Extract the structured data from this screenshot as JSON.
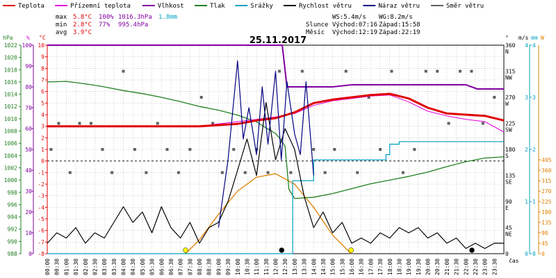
{
  "legend": [
    {
      "label": "Teplota",
      "color": "#e00000"
    },
    {
      "label": "Přízemní teplota",
      "color": "#e000e0"
    },
    {
      "label": "Vlhkost",
      "color": "#8000a0"
    },
    {
      "label": "Tlak",
      "color": "#208020"
    },
    {
      "label": "Srážky",
      "color": "#00a0c0"
    },
    {
      "label": "Rychlost větru",
      "color": "#000000"
    },
    {
      "label": "Náraz větru",
      "color": "#000080"
    },
    {
      "label": "Směr větru",
      "color": "#606060"
    }
  ],
  "stats": {
    "max_label": "max",
    "max_temp": "5.8°C",
    "max_hum": "100%",
    "max_pres": "1016.3hPa",
    "max_rain": "1.8mm",
    "min_label": "min",
    "min_temp": "2.8°C",
    "min_hum": "77%",
    "min_pres": "995.4hPa",
    "avg_label": "avg",
    "avg_temp": "3.9°C"
  },
  "info": {
    "ws": "WS:5.4m/s",
    "wg": "WG:8.2m/s",
    "sun_label": "Slunce",
    "sun_rise": "Východ:07:16",
    "sun_set": "Západ:15:58",
    "moon_label": "Měsíc",
    "moon_rise": "Východ:12:19",
    "moon_set": "Západ:22:19"
  },
  "colors": {
    "temp": "#e00000",
    "ground": "#e000e0",
    "hum": "#8000a0",
    "pres": "#208020",
    "rain": "#00a0c0",
    "wind": "#000000",
    "gust": "#000080",
    "dir": "#606060",
    "sun": "#e08000"
  },
  "chart_data": {
    "type": "line",
    "title": "25.11.2017",
    "xlabel": "čas",
    "x_ticks": [
      "00:00",
      "00:30",
      "01:00",
      "01:30",
      "02:00",
      "02:30",
      "03:00",
      "03:30",
      "04:00",
      "04:30",
      "05:00",
      "05:30",
      "06:00",
      "06:30",
      "07:00",
      "07:30",
      "08:00",
      "08:30",
      "09:00",
      "09:30",
      "10:00",
      "10:30",
      "11:00",
      "11:30",
      "12:00",
      "12:30",
      "13:00",
      "13:30",
      "14:00",
      "14:30",
      "15:00",
      "15:30",
      "16:00",
      "16:30",
      "17:00",
      "17:30",
      "18:00",
      "18:30",
      "19:00",
      "19:30",
      "20:00",
      "20:30",
      "21:00",
      "21:30",
      "22:00",
      "22:30",
      "23:00",
      "23:30"
    ],
    "axes": {
      "hpa": {
        "label": "hPa",
        "ticks": [
          988,
          990,
          992,
          994,
          996,
          998,
          1000,
          1002,
          1004,
          1006,
          1008,
          1010,
          1012,
          1014,
          1016,
          1018,
          1020,
          1022
        ]
      },
      "hum": {
        "label": "%",
        "ticks": [
          0,
          10,
          20,
          30,
          40,
          50,
          60,
          70,
          80,
          90,
          100
        ]
      },
      "temp": {
        "label": "°C",
        "ticks": [
          -8,
          -7,
          -6,
          -5,
          -4,
          -3,
          -2,
          -1,
          0,
          1,
          2,
          3,
          4,
          5,
          6,
          7,
          8,
          9,
          10
        ]
      },
      "dir": {
        "label": "°",
        "ticks": [
          {
            "v": "0",
            "d": ""
          },
          {
            "v": "45",
            "d": "NE"
          },
          {
            "v": "90",
            "d": "E"
          },
          {
            "v": "135",
            "d": "SE"
          },
          {
            "v": "180",
            "d": "S"
          },
          {
            "v": "225",
            "d": "SW"
          },
          {
            "v": "270",
            "d": "W"
          },
          {
            "v": "315",
            "d": "NW"
          },
          {
            "v": "360",
            "d": "N"
          }
        ]
      },
      "ms": {
        "label": "m/s",
        "ticks": [
          0,
          1,
          2,
          3,
          4
        ]
      },
      "mm": {
        "label": "mm",
        "ticks": [
          0,
          1,
          2,
          3,
          4
        ]
      },
      "w": {
        "label": "W",
        "ticks": [
          0,
          45,
          90,
          135,
          180,
          225,
          270,
          315,
          360,
          405
        ]
      }
    },
    "series": [
      {
        "name": "Teplota",
        "key": "temp",
        "x": [
          0,
          1,
          2,
          3,
          4,
          5,
          6,
          7,
          8,
          9,
          10,
          11,
          12,
          13,
          14,
          15,
          16,
          17,
          18,
          19,
          20,
          21,
          22,
          23,
          24
        ],
        "y": [
          3.0,
          3.0,
          3.0,
          3.0,
          3.0,
          3.0,
          3.0,
          3.0,
          3.0,
          3.1,
          3.2,
          3.5,
          3.7,
          4.2,
          5.0,
          5.3,
          5.5,
          5.7,
          5.8,
          5.4,
          4.6,
          4.1,
          4.0,
          3.9,
          3.5
        ]
      },
      {
        "name": "Přízemní teplota",
        "key": "ground",
        "x": [
          0,
          1,
          2,
          3,
          4,
          5,
          6,
          7,
          8,
          9,
          10,
          11,
          12,
          13,
          14,
          15,
          16,
          17,
          18,
          19,
          20,
          21,
          22,
          23,
          24
        ],
        "y": [
          3.0,
          3.0,
          3.0,
          3.0,
          3.0,
          3.0,
          3.0,
          3.0,
          3.0,
          3.2,
          3.4,
          3.6,
          3.8,
          4.1,
          4.8,
          5.2,
          5.4,
          5.6,
          5.7,
          5.1,
          4.3,
          3.9,
          3.6,
          3.4,
          2.5
        ]
      },
      {
        "name": "Vlhkost",
        "key": "hum",
        "x": [
          0,
          1,
          2,
          3,
          4,
          5,
          6,
          7,
          8,
          9,
          10,
          11,
          12,
          12.35,
          12.6,
          13,
          14,
          15,
          16,
          17,
          18,
          19,
          20,
          21,
          22,
          22.6,
          23,
          24
        ],
        "y": [
          100,
          100,
          100,
          100,
          100,
          100,
          100,
          100,
          100,
          100,
          100,
          100,
          100,
          100,
          80,
          80,
          80,
          80,
          81,
          81,
          81,
          81,
          81,
          81,
          81,
          79,
          79,
          79
        ]
      },
      {
        "name": "Tlak",
        "key": "pres",
        "x": [
          0,
          1,
          2,
          3,
          4,
          5,
          6,
          7,
          8,
          9,
          10,
          11,
          11.5,
          12,
          12.3,
          12.5,
          12.7,
          13,
          14,
          15,
          16,
          17,
          18,
          19,
          20,
          21,
          22,
          23,
          24
        ],
        "y": [
          1016.0,
          1016.1,
          1015.7,
          1015.2,
          1014.6,
          1014.1,
          1013.5,
          1012.8,
          1012.0,
          1011.4,
          1010.6,
          1009.5,
          1008.5,
          1007.6,
          1006.5,
          1005.5,
          998.5,
          997.0,
          997.2,
          997.8,
          998.6,
          999.4,
          1000.0,
          1000.6,
          1001.3,
          1002.2,
          1003.0,
          1003.6,
          1003.8
        ]
      },
      {
        "name": "Srážky",
        "key": "rain",
        "x": [
          0,
          12.8,
          12.9,
          13.8,
          14.0,
          17.5,
          17.8,
          18.0,
          18.5,
          24
        ],
        "y": [
          0,
          0,
          1.4,
          1.4,
          1.8,
          1.8,
          1.9,
          2.1,
          2.15,
          2.15
        ]
      },
      {
        "name": "Rychlost větru",
        "key": "wind",
        "x": [
          0,
          0.5,
          1,
          1.5,
          2,
          2.5,
          3,
          3.5,
          4,
          4.5,
          5,
          5.5,
          6,
          6.5,
          7,
          7.5,
          8,
          8.5,
          9,
          9.5,
          10,
          10.5,
          11,
          11.5,
          12,
          12.5,
          13,
          13.5,
          14,
          14.5,
          15,
          15.5,
          16,
          16.5,
          17,
          17.5,
          18,
          18.5,
          19,
          19.5,
          20,
          20.5,
          21,
          21.5,
          22,
          22.5,
          23,
          23.5,
          24
        ],
        "y": [
          0.2,
          0.4,
          0.3,
          0.5,
          0.2,
          0.4,
          0.3,
          0.6,
          0.9,
          0.6,
          0.8,
          0.4,
          0.9,
          0.5,
          0.3,
          0.6,
          0.2,
          0.5,
          0.6,
          1.0,
          1.6,
          2.2,
          1.5,
          2.9,
          1.8,
          2.4,
          2.0,
          1.1,
          0.5,
          0.8,
          0.4,
          0.6,
          0.2,
          0.3,
          0.2,
          0.4,
          0.3,
          0.5,
          0.4,
          0.5,
          0.3,
          0.4,
          0.2,
          0.3,
          0.1,
          0.2,
          0.1,
          0.2,
          0.2
        ]
      },
      {
        "name": "Náraz větru",
        "key": "gust",
        "x": [
          9,
          9.5,
          10,
          10.3,
          10.6,
          11,
          11.3,
          11.6,
          12,
          12.3,
          12.6,
          13,
          13.3,
          13.6,
          14
        ],
        "y": [
          0.5,
          1.8,
          3.7,
          2.2,
          2.8,
          1.9,
          3.2,
          2.1,
          3.5,
          1.8,
          3.3,
          2.3,
          1.9,
          3.3,
          1.5
        ]
      },
      {
        "name": "Směr větru",
        "key": "dir",
        "x": [
          0.2,
          0.6,
          1.2,
          1.7,
          2.3,
          2.9,
          3.4,
          4.0,
          4.6,
          5.2,
          5.8,
          6.3,
          6.9,
          7.5,
          8.1,
          8.7,
          9.2,
          9.8,
          10.4,
          11.0,
          11.6,
          12.2,
          12.8,
          13.4,
          14.0,
          14.6,
          15.1,
          15.7,
          16.3,
          16.9,
          17.5,
          18.1,
          18.7,
          19.3,
          19.9,
          20.5,
          21.1,
          21.7,
          22.3,
          22.9,
          23.5
        ],
        "y": [
          180,
          225,
          140,
          225,
          225,
          180,
          140,
          315,
          180,
          140,
          225,
          180,
          140,
          180,
          270,
          225,
          140,
          180,
          140,
          180,
          140,
          315,
          140,
          315,
          180,
          140,
          180,
          315,
          140,
          270,
          180,
          315,
          140,
          180,
          315,
          315,
          225,
          315,
          315,
          225,
          270
        ]
      }
    ],
    "sun_curve": {
      "x": [
        7.27,
        8,
        9,
        10,
        11,
        12,
        13,
        14,
        15,
        15.97
      ],
      "y": [
        0,
        60,
        170,
        270,
        330,
        345,
        300,
        200,
        80,
        0
      ]
    },
    "markers": [
      {
        "x": 7.27,
        "color": "#ffff00"
      },
      {
        "x": 12.32,
        "color": "#000000"
      },
      {
        "x": 15.97,
        "color": "#ffff00"
      },
      {
        "x": 22.32,
        "color": "#000000"
      }
    ]
  }
}
